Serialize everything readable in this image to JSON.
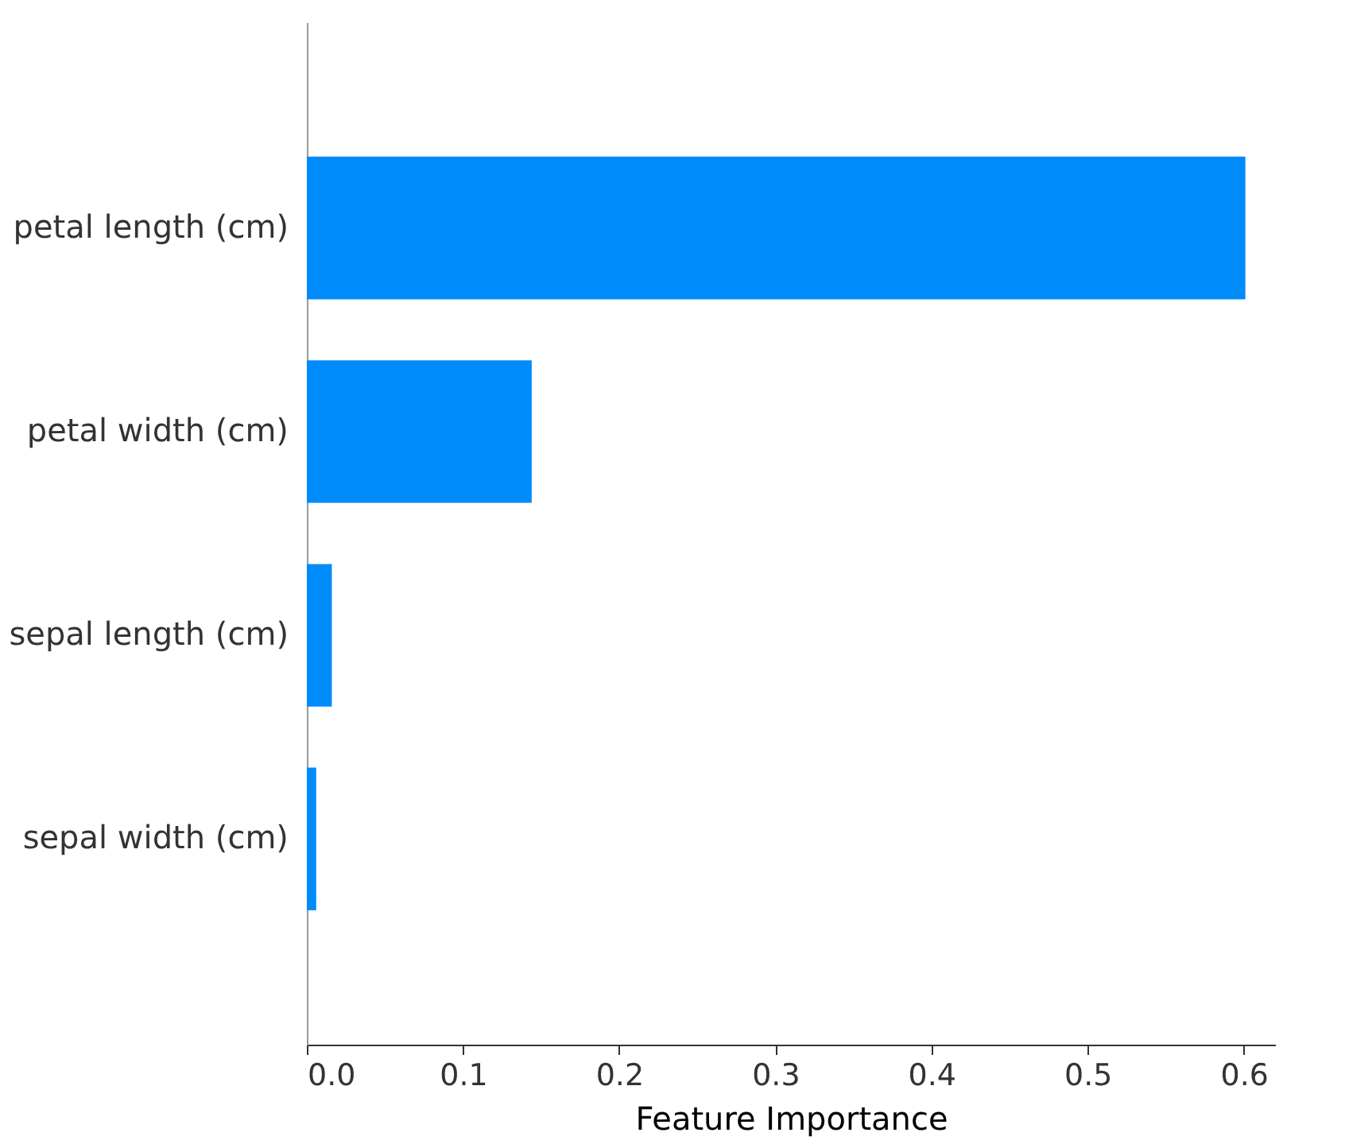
{
  "chart_data": {
    "type": "bar",
    "orientation": "horizontal",
    "xlabel": "Feature Importance",
    "categories": [
      "petal length (cm)",
      "petal width (cm)",
      "sepal length (cm)",
      "sepal width (cm)"
    ],
    "values": [
      0.601,
      0.144,
      0.016,
      0.006
    ],
    "color": "#008bfb",
    "xlim": [
      0,
      0.62
    ],
    "xticks": [
      {
        "value": 0,
        "label": "0.0"
      },
      0.1,
      0.2,
      0.3,
      0.4,
      0.5,
      0.6
    ],
    "grid": false
  }
}
